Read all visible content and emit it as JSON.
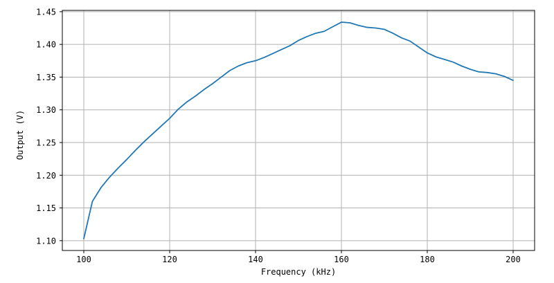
{
  "chart_data": {
    "type": "line",
    "title": "",
    "xlabel": "Frequency (kHz)",
    "ylabel": "Output (V)",
    "series": [
      {
        "name": "Output",
        "x": [
          100,
          102,
          104,
          106,
          108,
          110,
          112,
          114,
          116,
          118,
          120,
          122,
          124,
          126,
          128,
          130,
          132,
          134,
          136,
          138,
          140,
          142,
          144,
          146,
          148,
          150,
          152,
          154,
          156,
          158,
          160,
          162,
          164,
          166,
          168,
          170,
          172,
          174,
          176,
          178,
          180,
          182,
          184,
          186,
          188,
          190,
          192,
          194,
          196,
          198,
          200
        ],
        "y": [
          1.103,
          1.16,
          1.181,
          1.197,
          1.211,
          1.224,
          1.238,
          1.251,
          1.263,
          1.275,
          1.287,
          1.301,
          1.312,
          1.321,
          1.331,
          1.34,
          1.35,
          1.36,
          1.367,
          1.372,
          1.375,
          1.38,
          1.386,
          1.392,
          1.398,
          1.406,
          1.412,
          1.417,
          1.42,
          1.427,
          1.434,
          1.433,
          1.429,
          1.426,
          1.425,
          1.423,
          1.417,
          1.41,
          1.405,
          1.396,
          1.387,
          1.381,
          1.377,
          1.373,
          1.367,
          1.362,
          1.358,
          1.357,
          1.355,
          1.351,
          1.345
        ]
      }
    ],
    "xlim": [
      95,
      205
    ],
    "ylim": [
      1.085,
      1.452
    ],
    "xticks": [
      100,
      120,
      140,
      160,
      180,
      200
    ],
    "xtick_labels": [
      "100",
      "120",
      "140",
      "160",
      "180",
      "200"
    ],
    "yticks": [
      1.1,
      1.15,
      1.2,
      1.25,
      1.3,
      1.35,
      1.4,
      1.45
    ],
    "ytick_labels": [
      "1.10",
      "1.15",
      "1.20",
      "1.25",
      "1.30",
      "1.35",
      "1.40",
      "1.45"
    ],
    "grid": true,
    "legend": false,
    "line_color": "#1f77b4",
    "grid_color": "#b0b0b0",
    "spine_color": "#000000",
    "tick_color": "#000000",
    "background": "#ffffff"
  }
}
